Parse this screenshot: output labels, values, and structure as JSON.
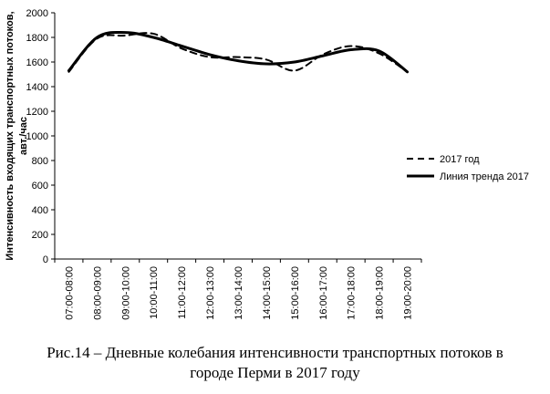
{
  "chart_data": {
    "type": "line",
    "categories": [
      "07:00-08:00",
      "08:00-09:00",
      "09:00-10:00",
      "10:00-11:00",
      "11:00-12:00",
      "12:00-13:00",
      "13:00-14:00",
      "14:00-15:00",
      "15:00-16:00",
      "16:00-17:00",
      "17:00-18:00",
      "18:00-19:00",
      "19:00-20:00"
    ],
    "series": [
      {
        "name": "2017 год",
        "style": "dashed",
        "color": "#000000",
        "values": [
          1520,
          1790,
          1815,
          1830,
          1710,
          1640,
          1640,
          1620,
          1530,
          1660,
          1730,
          1670,
          1520
        ]
      },
      {
        "name": "Линия тренда 2017",
        "style": "solid",
        "color": "#000000",
        "values": [
          1530,
          1800,
          1840,
          1800,
          1730,
          1660,
          1610,
          1585,
          1600,
          1650,
          1700,
          1690,
          1520
        ]
      }
    ],
    "ylim": [
      0,
      2000
    ],
    "yticks": [
      0,
      200,
      400,
      600,
      800,
      1000,
      1200,
      1400,
      1600,
      1800,
      2000
    ],
    "ylabel_lines": [
      "Интенсивность входящих транспортных потоков,",
      "авт./час"
    ],
    "xlabel": "",
    "grid": false,
    "legend_position": "right"
  },
  "caption": {
    "line1": "Рис.14 – Дневные колебания интенсивности транспортных потоков в",
    "line2": "городе Перми в 2017 году"
  }
}
